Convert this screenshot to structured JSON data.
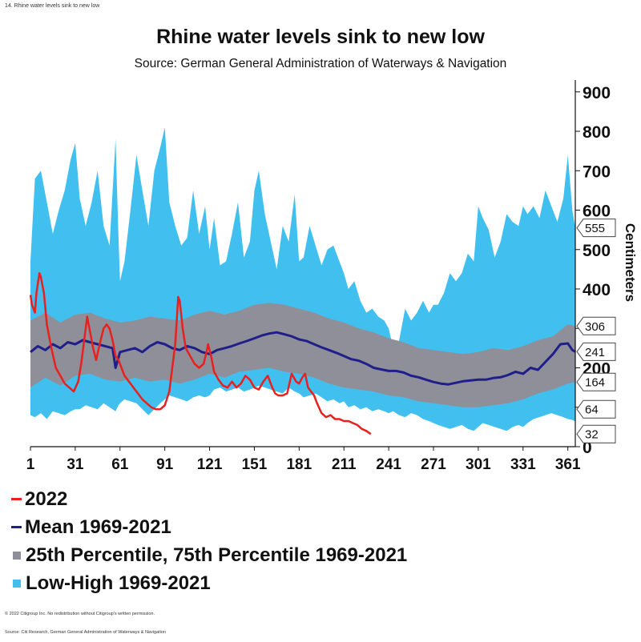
{
  "header": {
    "figure_number": "14. Rhine water levels sink to new low"
  },
  "chart_data": {
    "type": "area",
    "title": "Rhine water levels sink to new low",
    "subtitle": "Source: German General Administration of Waterways & Navigation",
    "xlabel": "",
    "ylabel": "Centimeters",
    "x_ticks": [
      1,
      31,
      61,
      91,
      121,
      151,
      181,
      211,
      241,
      271,
      301,
      331,
      361
    ],
    "y_ticks": [
      0,
      100,
      200,
      300,
      400,
      500,
      600,
      700,
      800,
      900
    ],
    "xlim": [
      1,
      366
    ],
    "ylim": [
      0,
      930
    ],
    "y_axis_side": "right",
    "end_value_tags": [
      555,
      306,
      241,
      164,
      64,
      32
    ],
    "colors": {
      "2022": "#e8201e",
      "mean": "#1f1f8a",
      "percentile_band": "#8f8f9a",
      "low_high_band": "#41c0ef"
    },
    "series": [
      {
        "name": "Low-High 1969-2021",
        "kind": "band",
        "x": [
          1,
          4,
          8,
          12,
          16,
          20,
          24,
          28,
          31,
          34,
          38,
          42,
          46,
          50,
          54,
          58,
          60,
          61,
          64,
          68,
          72,
          76,
          80,
          84,
          88,
          91,
          94,
          98,
          102,
          106,
          110,
          114,
          118,
          121,
          124,
          128,
          132,
          136,
          140,
          144,
          148,
          151,
          154,
          158,
          162,
          166,
          170,
          174,
          178,
          181,
          184,
          188,
          192,
          196,
          200,
          204,
          208,
          211,
          214,
          218,
          222,
          226,
          230,
          234,
          238,
          241,
          244,
          248,
          252,
          256,
          260,
          264,
          268,
          271,
          274,
          278,
          282,
          286,
          290,
          294,
          298,
          301,
          304,
          308,
          312,
          316,
          320,
          324,
          328,
          331,
          334,
          338,
          342,
          346,
          350,
          354,
          358,
          361,
          364,
          366
        ],
        "low": [
          80,
          75,
          85,
          70,
          90,
          85,
          80,
          90,
          95,
          95,
          105,
          100,
          95,
          110,
          100,
          90,
          105,
          110,
          120,
          115,
          110,
          95,
          80,
          95,
          110,
          120,
          130,
          125,
          120,
          115,
          125,
          130,
          125,
          130,
          145,
          150,
          140,
          145,
          150,
          140,
          145,
          150,
          155,
          150,
          145,
          140,
          135,
          150,
          140,
          135,
          125,
          130,
          135,
          125,
          115,
          120,
          110,
          115,
          100,
          105,
          95,
          100,
          90,
          95,
          90,
          85,
          90,
          80,
          75,
          85,
          80,
          70,
          65,
          60,
          55,
          50,
          45,
          50,
          55,
          45,
          40,
          50,
          60,
          55,
          50,
          45,
          40,
          50,
          55,
          50,
          60,
          70,
          75,
          80,
          85,
          80,
          75,
          70,
          68,
          64
        ],
        "high": [
          470,
          680,
          700,
          620,
          540,
          600,
          650,
          730,
          770,
          630,
          560,
          620,
          700,
          560,
          510,
          780,
          530,
          420,
          470,
          600,
          740,
          650,
          560,
          700,
          760,
          810,
          620,
          560,
          510,
          530,
          650,
          540,
          610,
          500,
          580,
          460,
          470,
          540,
          620,
          480,
          520,
          650,
          700,
          590,
          520,
          450,
          560,
          520,
          640,
          470,
          480,
          560,
          510,
          460,
          500,
          510,
          470,
          440,
          400,
          420,
          370,
          340,
          350,
          330,
          320,
          300,
          250,
          270,
          350,
          320,
          340,
          370,
          340,
          360,
          360,
          390,
          440,
          420,
          440,
          490,
          470,
          610,
          580,
          550,
          480,
          520,
          590,
          570,
          560,
          610,
          590,
          610,
          580,
          650,
          610,
          570,
          630,
          740,
          600,
          555
        ]
      },
      {
        "name": "25th Percentile, 75th Percentile 1969-2021",
        "kind": "band",
        "x": [
          1,
          11,
          21,
          31,
          41,
          51,
          61,
          71,
          81,
          91,
          101,
          111,
          121,
          131,
          141,
          151,
          161,
          171,
          181,
          191,
          201,
          211,
          221,
          231,
          241,
          251,
          261,
          271,
          281,
          291,
          301,
          311,
          321,
          331,
          341,
          351,
          361,
          366
        ],
        "low": [
          150,
          175,
          155,
          180,
          185,
          170,
          165,
          175,
          165,
          170,
          160,
          170,
          185,
          175,
          190,
          195,
          200,
          190,
          185,
          175,
          160,
          150,
          145,
          140,
          130,
          125,
          115,
          110,
          105,
          100,
          100,
          105,
          110,
          120,
          135,
          145,
          160,
          164
        ],
        "high": [
          320,
          340,
          315,
          335,
          340,
          325,
          315,
          320,
          330,
          325,
          320,
          335,
          345,
          335,
          345,
          360,
          365,
          360,
          350,
          340,
          325,
          315,
          300,
          290,
          275,
          265,
          250,
          245,
          240,
          235,
          240,
          250,
          245,
          255,
          270,
          280,
          310,
          306
        ]
      },
      {
        "name": "Mean 1969-2021",
        "kind": "line",
        "x": [
          1,
          6,
          11,
          16,
          21,
          26,
          31,
          36,
          41,
          46,
          51,
          56,
          58,
          61,
          66,
          71,
          76,
          81,
          86,
          91,
          96,
          101,
          106,
          111,
          116,
          121,
          126,
          131,
          136,
          141,
          146,
          151,
          156,
          161,
          166,
          171,
          176,
          181,
          186,
          191,
          196,
          201,
          206,
          211,
          216,
          221,
          226,
          231,
          236,
          241,
          246,
          251,
          256,
          261,
          266,
          271,
          276,
          281,
          286,
          291,
          296,
          301,
          306,
          311,
          316,
          321,
          326,
          331,
          336,
          341,
          346,
          351,
          356,
          361,
          364,
          366
        ],
        "values": [
          240,
          255,
          245,
          260,
          250,
          265,
          260,
          270,
          265,
          260,
          255,
          250,
          200,
          240,
          245,
          250,
          240,
          255,
          265,
          260,
          250,
          245,
          255,
          250,
          240,
          235,
          245,
          250,
          255,
          262,
          268,
          275,
          282,
          287,
          290,
          285,
          280,
          272,
          268,
          260,
          252,
          245,
          238,
          230,
          222,
          218,
          210,
          200,
          196,
          192,
          192,
          188,
          180,
          176,
          170,
          164,
          160,
          158,
          162,
          166,
          168,
          170,
          170,
          174,
          176,
          182,
          190,
          185,
          200,
          195,
          215,
          235,
          260,
          262,
          245,
          241
        ]
      },
      {
        "name": "2022",
        "kind": "line",
        "x": [
          1,
          2,
          4,
          5,
          7,
          8,
          10,
          12,
          15,
          18,
          21,
          24,
          27,
          30,
          33,
          35,
          37,
          39,
          41,
          43,
          45,
          48,
          50,
          52,
          54,
          56,
          58,
          60,
          62,
          64,
          67,
          70,
          73,
          76,
          79,
          82,
          85,
          88,
          91,
          94,
          96,
          98,
          99,
          100,
          101,
          103,
          105,
          108,
          111,
          114,
          117,
          119,
          120,
          122,
          124,
          127,
          130,
          133,
          136,
          139,
          142,
          145,
          148,
          151,
          154,
          157,
          160,
          163,
          165,
          167,
          170,
          173,
          176,
          179,
          181,
          183,
          185,
          187,
          189,
          191,
          193,
          196,
          199,
          202,
          205,
          208,
          211,
          214,
          217,
          220,
          223,
          226,
          229
        ],
        "values": [
          385,
          360,
          340,
          390,
          440,
          430,
          390,
          310,
          250,
          200,
          180,
          160,
          150,
          140,
          165,
          210,
          270,
          330,
          290,
          250,
          220,
          270,
          300,
          310,
          300,
          270,
          230,
          220,
          200,
          180,
          165,
          150,
          135,
          120,
          110,
          100,
          95,
          95,
          105,
          140,
          200,
          260,
          320,
          380,
          370,
          300,
          250,
          230,
          210,
          200,
          210,
          240,
          260,
          230,
          190,
          170,
          155,
          150,
          165,
          150,
          160,
          180,
          170,
          150,
          145,
          165,
          180,
          150,
          135,
          130,
          130,
          135,
          185,
          165,
          160,
          175,
          185,
          150,
          140,
          130,
          110,
          85,
          75,
          80,
          70,
          70,
          65,
          65,
          60,
          55,
          45,
          40,
          32
        ]
      }
    ]
  },
  "legend": {
    "items": [
      {
        "label": "2022",
        "color": "#e8201e",
        "shape": "line"
      },
      {
        "label": "Mean 1969-2021",
        "color": "#1f1f8a",
        "shape": "line"
      },
      {
        "label": "25th Percentile, 75th Percentile 1969-2021",
        "color": "#8f8f9a",
        "shape": "box"
      },
      {
        "label": "Low-High 1969-2021",
        "color": "#41c0ef",
        "shape": "box"
      }
    ]
  },
  "footer": {
    "copyright": "© 2022 Citigroup Inc. No redistribution without Citigroup's written permission.",
    "source": "Source: Citi Research, German General Administration of Waterways & Navigation"
  }
}
